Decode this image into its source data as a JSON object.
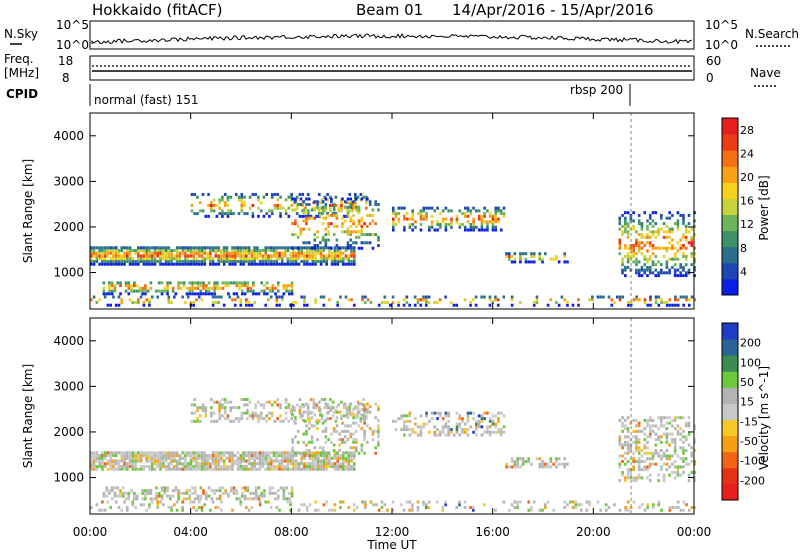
{
  "header": {
    "station": "Hokkaido (fitACF)",
    "beam": "Beam 01",
    "dates": "14/Apr/2016 - 15/Apr/2016"
  },
  "sky_panel": {
    "left_label": "N.Sky",
    "right_label": "N.Search",
    "left_ticks": [
      "10^5",
      "10^0"
    ],
    "right_ticks": [
      "10^5",
      "10^0"
    ]
  },
  "freq_panel": {
    "left_label_1": "Freq.",
    "left_label_2": "[MHz]",
    "left_ticks": [
      "18",
      "8"
    ],
    "right_ticks": [
      "60",
      "0"
    ],
    "right_label": "Nave"
  },
  "cpid_panel": {
    "label": "CPID",
    "mode_1": "normal (fast) 151",
    "mode_2": "rbsp 200"
  },
  "x_axis": {
    "label": "Time UT",
    "ticks": [
      "00:00",
      "04:00",
      "08:00",
      "12:00",
      "16:00",
      "20:00",
      "00:00"
    ]
  },
  "chart_data": [
    {
      "type": "heatmap",
      "quantity": "Power",
      "ylabel": "Slant Range [km]",
      "y_ticks": [
        1000,
        2000,
        3000,
        4000
      ],
      "ylim": [
        200,
        4500
      ],
      "xlim_hours": [
        0,
        24
      ],
      "colorbar_label": "Power [dB]",
      "colorbar_ticks": [
        "4",
        "8",
        "12",
        "16",
        "20",
        "24",
        "28"
      ],
      "colorbar_range": [
        0,
        30
      ],
      "colors": [
        "#0a1ee6",
        "#1e46b4",
        "#2a6e8c",
        "#3c9264",
        "#6eb45a",
        "#c8d23c",
        "#f5d21e",
        "#faa014",
        "#f56e14",
        "#eb3c14",
        "#e61e1e"
      ]
    },
    {
      "type": "heatmap",
      "quantity": "Velocity",
      "ylabel": "Slant Range [km]",
      "y_ticks": [
        1000,
        2000,
        3000,
        4000
      ],
      "ylim": [
        200,
        4500
      ],
      "xlim_hours": [
        0,
        24
      ],
      "colorbar_label": "Velocity [m s^-1]",
      "colorbar_ticks": [
        "200",
        "100",
        "50",
        "15",
        "-15",
        "-50",
        "-100",
        "-200"
      ],
      "colorbar_range": [
        -250,
        250
      ],
      "colors": [
        "#1e3cc8",
        "#2a6496",
        "#3c8c50",
        "#6ec83c",
        "#b4b4b4",
        "#c8c8c8",
        "#f5c828",
        "#f5a014",
        "#f06414",
        "#e63214",
        "#e61e1e"
      ]
    }
  ]
}
